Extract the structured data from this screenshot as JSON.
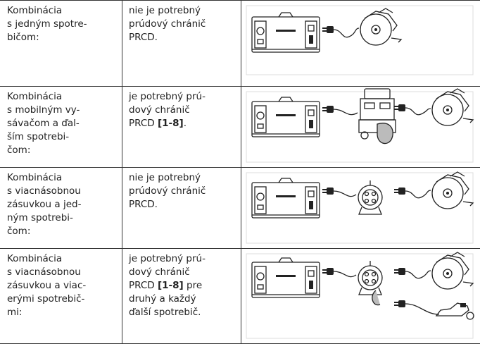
{
  "table": {
    "rows": [
      {
        "combination": [
          "Kombinácia",
          "s jedným spotre-",
          "bičom:"
        ],
        "requirement": [
          "nie je potrebný",
          "prúdový chránič",
          "PRCD."
        ]
      },
      {
        "combination": [
          "Kombinácia",
          "s mobilným vy-",
          "sávačom a ďal-",
          "ším spotrebi-",
          "čom:"
        ],
        "requirement": [
          "je potrebný prú-",
          "dový chránič",
          [
            "PRCD ",
            {
              "bold": "[1-8]"
            },
            "."
          ]
        ]
      },
      {
        "combination": [
          "Kombinácia",
          "s viacnásobnou",
          "zásuvkou a jed-",
          "ným spotrebi-",
          "čom:"
        ],
        "requirement": [
          "nie je potrebný",
          "prúdový chránič",
          "PRCD."
        ]
      },
      {
        "combination": [
          "Kombinácia",
          "s viacnásobnou",
          "zásuvkou a viac-",
          "erými spotrebič-",
          "mi:"
        ],
        "requirement": [
          "je potrebný prú-",
          "dový chránič",
          [
            "PRCD ",
            {
              "bold": "[1-8]"
            },
            " pre"
          ],
          "druhý a každý",
          "ďalší spotrebič."
        ]
      }
    ]
  }
}
